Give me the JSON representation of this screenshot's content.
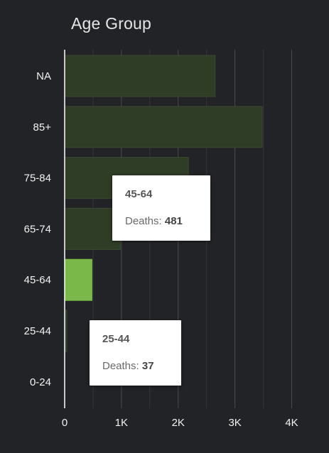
{
  "header": {
    "title": "Age Group"
  },
  "colors": {
    "background": "#222326",
    "bar_dim": "#2f3d26",
    "bar_dim_stroke": "#3a4a30",
    "bar_highlight": "#7bb84a",
    "grid": "#4a4b4f",
    "axis": "#ffffff"
  },
  "chart_data": {
    "type": "bar",
    "orientation": "horizontal",
    "categories": [
      "NA",
      "85+",
      "75-84",
      "65-74",
      "45-64",
      "25-44",
      "0-24"
    ],
    "values": [
      2650,
      3480,
      2180,
      980,
      481,
      37,
      0
    ],
    "highlighted": "45-64",
    "xlim": [
      0,
      4000
    ],
    "xticks": [
      0,
      1000,
      2000,
      3000,
      4000
    ],
    "xtick_labels": [
      "0",
      "1K",
      "2K",
      "3K",
      "4K"
    ],
    "grid": true
  },
  "tooltips": [
    {
      "title": "45-64",
      "label": "Deaths: ",
      "value": "481"
    },
    {
      "title": "25-44",
      "label": "Deaths: ",
      "value": "37"
    }
  ]
}
